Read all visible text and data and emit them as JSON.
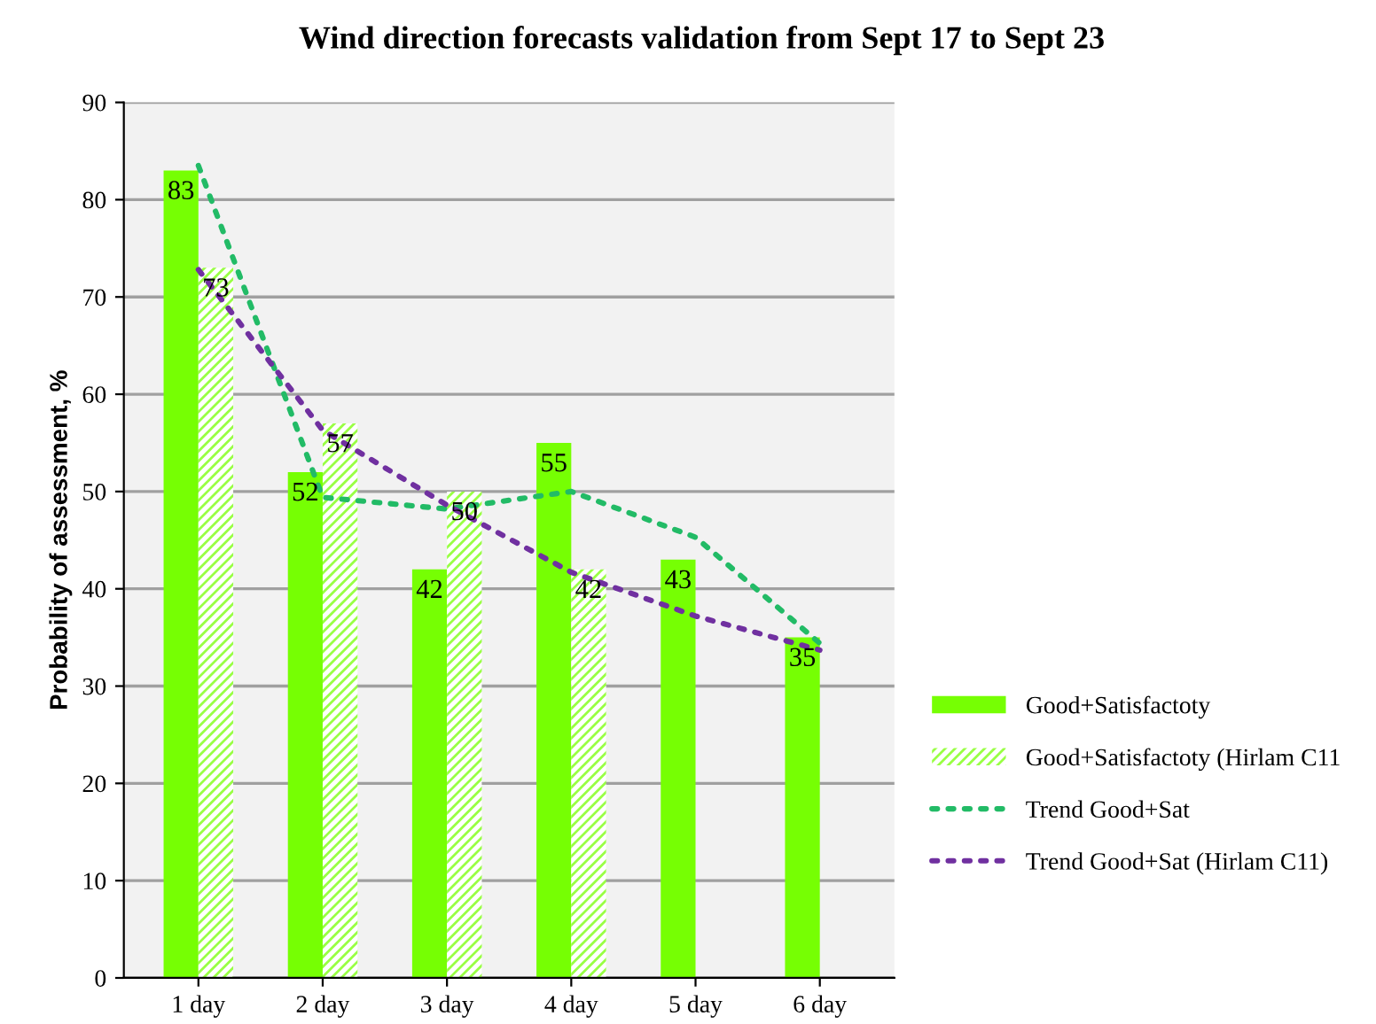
{
  "chart_data": {
    "type": "bar",
    "title": "Wind direction forecasts validation from Sept 17 to Sept 23",
    "ylabel": "Probability of assessment, %",
    "categories": [
      "1 day",
      "2 day",
      "3 day",
      "4 day",
      "5 day",
      "6 day"
    ],
    "series": [
      {
        "name": "Good+Satisfactoty",
        "color": "#76ff03",
        "values": [
          83,
          52,
          42,
          55,
          43,
          35
        ],
        "value_labels": [
          "83",
          "52",
          "42",
          "55",
          "43",
          "35"
        ]
      },
      {
        "name": "Good+Satisfactoty (Hirlam C11",
        "color": "#99ff44",
        "values": [
          73,
          57,
          50,
          42,
          null,
          null
        ],
        "value_labels": [
          "73",
          "57",
          "50",
          "42",
          null,
          null
        ]
      },
      {
        "name": "Trend Good+Sat",
        "type": "line",
        "color": "#22bb66",
        "line_style": "dotted",
        "values": [
          83.5,
          49.4,
          48.2,
          50,
          45.3,
          34.4
        ]
      },
      {
        "name": "Trend Good+Sat (Hirlam C11)",
        "type": "line",
        "color": "#7030a0",
        "line_style": "dotted",
        "values": [
          72.8,
          56.3,
          48.6,
          41.7,
          37.2,
          33.7
        ]
      }
    ],
    "ylim": [
      0,
      90
    ],
    "yticks": [
      0,
      10,
      20,
      30,
      40,
      50,
      60,
      70,
      80,
      90
    ],
    "grid": "y",
    "legend": "right"
  }
}
